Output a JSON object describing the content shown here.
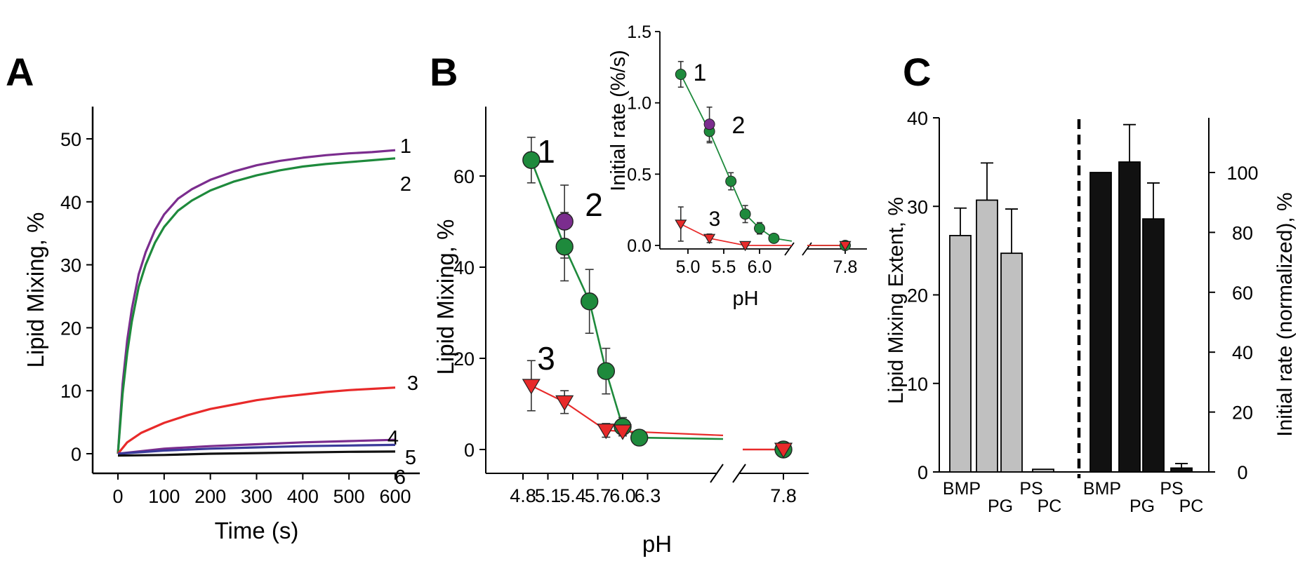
{
  "panels": {
    "a": {
      "label": "A"
    },
    "b": {
      "label": "B"
    },
    "c": {
      "label": "C"
    }
  },
  "colors": {
    "purple": "#7b2d8e",
    "green": "#1e8a3c",
    "red": "#e82a2a",
    "black": "#111111",
    "gray": "#c0c0c0"
  },
  "chart_data": [
    {
      "panel": "A",
      "type": "line",
      "xlabel": "Time (s)",
      "ylabel": "Lipid Mixing, %",
      "xlim": [
        0,
        600
      ],
      "ylim": [
        0,
        55
      ],
      "xticks": [
        0,
        100,
        200,
        300,
        400,
        500,
        600
      ],
      "yticks": [
        0,
        10,
        20,
        30,
        40,
        50
      ],
      "grid": false,
      "series": [
        {
          "name": "1",
          "color": "#7b2d8e",
          "x": [
            0,
            10,
            20,
            30,
            45,
            60,
            80,
            100,
            130,
            160,
            200,
            250,
            300,
            350,
            400,
            450,
            500,
            550,
            600
          ],
          "y": [
            0,
            11,
            18,
            23,
            28.5,
            32,
            35.5,
            38,
            40.5,
            42,
            43.5,
            44.8,
            45.8,
            46.5,
            47,
            47.4,
            47.7,
            47.9,
            48.2
          ]
        },
        {
          "name": "2",
          "color": "#1e8a3c",
          "x": [
            0,
            10,
            20,
            30,
            45,
            60,
            80,
            100,
            130,
            160,
            200,
            250,
            300,
            350,
            400,
            450,
            500,
            550,
            600
          ],
          "y": [
            0,
            9.5,
            16,
            21,
            26.5,
            30,
            33.5,
            36,
            38.6,
            40.2,
            41.8,
            43.2,
            44.2,
            45,
            45.6,
            46,
            46.3,
            46.6,
            46.9
          ]
        },
        {
          "name": "3",
          "color": "#e82a2a",
          "x": [
            0,
            20,
            50,
            100,
            150,
            200,
            250,
            300,
            350,
            400,
            450,
            500,
            550,
            600
          ],
          "y": [
            0,
            1.8,
            3.3,
            4.9,
            6.1,
            7.1,
            7.8,
            8.5,
            9,
            9.4,
            9.8,
            10.1,
            10.3,
            10.5
          ]
        },
        {
          "name": "4",
          "color": "#7b2d8e",
          "x": [
            0,
            100,
            200,
            300,
            400,
            500,
            600
          ],
          "y": [
            0,
            0.8,
            1.2,
            1.5,
            1.8,
            2,
            2.2
          ]
        },
        {
          "name": "5",
          "color": "#3a3a9a",
          "x": [
            0,
            100,
            200,
            300,
            400,
            500,
            600
          ],
          "y": [
            0,
            0.5,
            0.8,
            1,
            1.2,
            1.3,
            1.4
          ]
        },
        {
          "name": "6",
          "color": "#111111",
          "x": [
            0,
            100,
            200,
            300,
            400,
            500,
            600
          ],
          "y": [
            -0.3,
            -0.2,
            0,
            0.1,
            0.2,
            0.3,
            0.35
          ]
        }
      ]
    },
    {
      "panel": "B",
      "type": "line",
      "xlabel": "pH",
      "ylabel": "Lipid Mixing, %",
      "xticks": [
        "4.8",
        "5.1",
        "5.4",
        "5.7",
        "6.0",
        "6.3",
        "7.8"
      ],
      "yticks": [
        0,
        20,
        40,
        60
      ],
      "ylim": [
        -5,
        70
      ],
      "axis_break": true,
      "series": [
        {
          "name": "1",
          "color": "#1e8a3c",
          "marker": "circle",
          "x": [
            4.9,
            5.3,
            5.6,
            5.8,
            6.0,
            6.2,
            7.8
          ],
          "y": [
            63.5,
            44.5,
            32.5,
            17.2,
            5,
            2.6,
            0
          ],
          "err": [
            5,
            7.5,
            7,
            5,
            2,
            1,
            1
          ]
        },
        {
          "name": "2",
          "color": "#7b2d8e",
          "marker": "circle",
          "x": [
            5.3
          ],
          "y": [
            50
          ],
          "err": [
            8
          ]
        },
        {
          "name": "3",
          "color": "#e82a2a",
          "marker": "triangle-down",
          "x": [
            4.9,
            5.3,
            5.8,
            6.0,
            7.8
          ],
          "y": [
            14,
            10.4,
            4.2,
            4,
            0
          ],
          "err": [
            5.5,
            2.5,
            1.5,
            1,
            0.5
          ]
        }
      ]
    },
    {
      "panel": "B-inset",
      "type": "line",
      "xlabel": "pH",
      "ylabel": "Initial rate (%/s)",
      "xticks": [
        "5.0",
        "5.5",
        "6.0",
        "7.8"
      ],
      "yticks": [
        "0.0",
        "0.5",
        "1.0",
        "1.5"
      ],
      "ylim": [
        0,
        1.5
      ],
      "axis_break": true,
      "series": [
        {
          "name": "1",
          "color": "#1e8a3c",
          "marker": "circle",
          "x": [
            4.9,
            5.3,
            5.6,
            5.8,
            6.0,
            6.2,
            7.8
          ],
          "y": [
            1.2,
            0.8,
            0.45,
            0.22,
            0.12,
            0.05,
            0
          ],
          "err": [
            0.09,
            0.08,
            0.06,
            0.06,
            0.04,
            0.02,
            0.02
          ]
        },
        {
          "name": "2",
          "color": "#7b2d8e",
          "marker": "circle",
          "x": [
            5.3
          ],
          "y": [
            0.85
          ],
          "err": [
            0.12
          ]
        },
        {
          "name": "3",
          "color": "#e82a2a",
          "marker": "triangle-down",
          "x": [
            4.9,
            5.3,
            5.8,
            7.8
          ],
          "y": [
            0.15,
            0.05,
            0,
            0
          ],
          "err": [
            0.12,
            0.03,
            0.01,
            0.01
          ]
        }
      ]
    },
    {
      "panel": "C",
      "type": "bar",
      "ylabel_left": "Lipid Mixing Extent, %",
      "ylabel_right": "Initial rate (normalized), %",
      "yticks_left": [
        0,
        10,
        20,
        30,
        40
      ],
      "ylim_left": [
        0,
        40
      ],
      "yticks_right": [
        0,
        20,
        40,
        60,
        80,
        100
      ],
      "ylim_right": [
        0,
        120
      ],
      "groups": [
        {
          "name": "extent",
          "axis": "left",
          "color": "#c0c0c0",
          "categories": [
            "BMP",
            "PG",
            "PS",
            "PC"
          ],
          "values": [
            26.7,
            30.7,
            24.7,
            0.3
          ],
          "err": [
            3.1,
            4.2,
            5.0,
            0
          ]
        },
        {
          "name": "rate",
          "axis": "right",
          "color": "#111111",
          "categories": [
            "BMP",
            "PG",
            "PS",
            "PC"
          ],
          "values": [
            100,
            103.5,
            84.5,
            1.3
          ],
          "err": [
            0,
            12.5,
            12,
            1.5
          ]
        }
      ]
    }
  ]
}
